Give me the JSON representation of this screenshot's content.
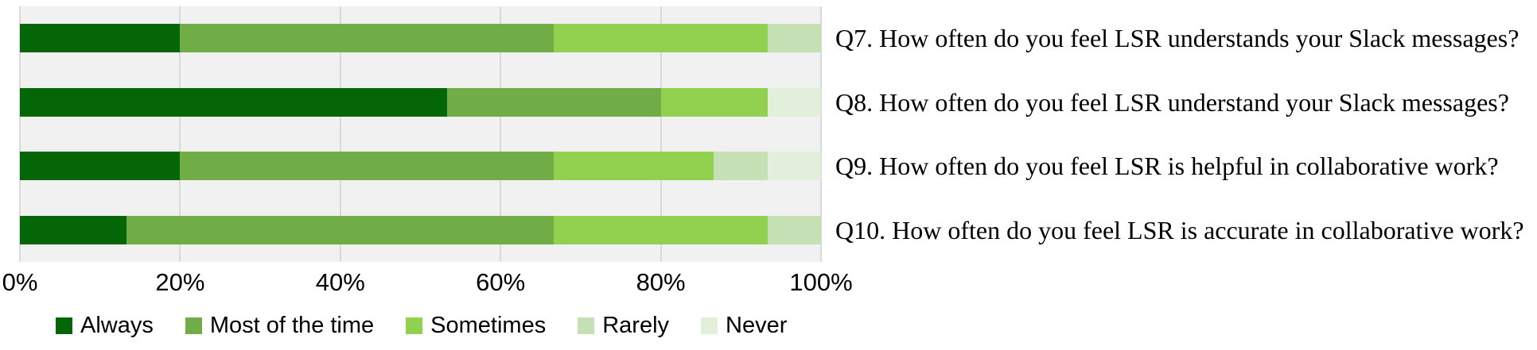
{
  "chart_data": {
    "type": "bar",
    "subtype": "horizontal-stacked-100pct",
    "unit": "percent",
    "categories": [
      "Q7. How often do you feel LSR understands your Slack messages?",
      "Q8. How often do you feel LSR understand your Slack messages?",
      "Q9. How often do you feel LSR is helpful in collaborative work?",
      "Q10. How often do you feel LSR is accurate in collaborative work?"
    ],
    "series": [
      {
        "name": "Always",
        "color": "#056608",
        "values": [
          20.0,
          53.3,
          20.0,
          13.3
        ]
      },
      {
        "name": "Most of the time",
        "color": "#70ad47",
        "values": [
          46.7,
          26.7,
          46.7,
          53.3
        ]
      },
      {
        "name": "Sometimes",
        "color": "#92d050",
        "values": [
          26.7,
          13.3,
          20.0,
          26.7
        ]
      },
      {
        "name": "Rarely",
        "color": "#c5e0b4",
        "values": [
          6.7,
          0,
          6.7,
          6.7
        ]
      },
      {
        "name": "Never",
        "color": "#e2efda",
        "values": [
          0,
          6.7,
          6.7,
          0
        ]
      }
    ],
    "x_axis": {
      "min": 0,
      "max": 100,
      "tick_labels": [
        "0%",
        "20%",
        "40%",
        "60%",
        "80%",
        "100%"
      ]
    },
    "legend_position": "bottom",
    "grid": true,
    "plot_background": "#f1f1f2",
    "gridline_color": "#d9d9d9"
  }
}
